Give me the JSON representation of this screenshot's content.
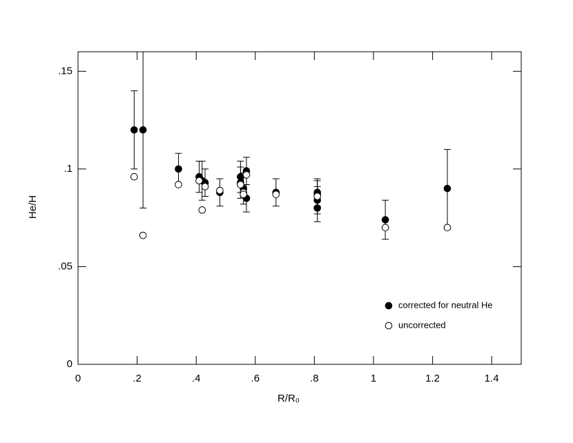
{
  "chart_data": {
    "type": "scatter",
    "xlabel": "R/R₀",
    "ylabel": "He/H",
    "xlim": [
      0,
      1.5
    ],
    "ylim": [
      0,
      0.16
    ],
    "xticks": [
      0,
      {
        "value": 0.2,
        "label": ".2"
      },
      {
        "value": 0.4,
        "label": ".4"
      },
      {
        "value": 0.6,
        "label": ".6"
      },
      {
        "value": 0.8,
        "label": ".8"
      },
      1,
      1.2,
      1.4
    ],
    "yticks": [
      0,
      {
        "value": 0.05,
        "label": ".05"
      },
      {
        "value": 0.1,
        "label": ".1"
      },
      {
        "value": 0.15,
        "label": ".15"
      }
    ],
    "legend": "lower right",
    "series": [
      {
        "name": "corrected for neutral He",
        "color": "#000000",
        "marker": "filled",
        "x": [
          0.19,
          0.22,
          0.34,
          0.41,
          0.42,
          0.43,
          0.48,
          0.55,
          0.55,
          0.56,
          0.57,
          0.57,
          0.67,
          0.81,
          0.81,
          0.81,
          0.81,
          1.04,
          1.25
        ],
        "values": [
          0.12,
          0.12,
          0.1,
          0.096,
          0.094,
          0.093,
          0.088,
          0.096,
          0.093,
          0.09,
          0.099,
          0.085,
          0.088,
          0.088,
          0.087,
          0.084,
          0.08,
          0.074,
          0.09
        ],
        "errors": [
          0.02,
          0.04,
          0.008,
          0.008,
          0.01,
          0.007,
          0.007,
          0.008,
          0.008,
          0.008,
          0.007,
          0.007,
          0.007,
          0.007,
          0.007,
          0.007,
          0.007,
          0.01,
          0.02
        ]
      },
      {
        "name": "uncorrected",
        "color": "#000000",
        "marker": "open",
        "x": [
          0.19,
          0.22,
          0.34,
          0.41,
          0.42,
          0.43,
          0.48,
          0.55,
          0.56,
          0.57,
          0.56,
          0.67,
          0.81,
          1.04,
          1.25
        ],
        "values": [
          0.096,
          0.066,
          0.092,
          0.094,
          0.079,
          0.091,
          0.089,
          0.092,
          0.088,
          0.097,
          0.087,
          0.087,
          0.086,
          0.07,
          0.07
        ]
      }
    ]
  }
}
